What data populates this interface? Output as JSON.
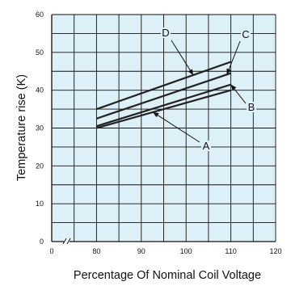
{
  "chart_data": {
    "type": "line",
    "title": "",
    "xlabel": "Percentage Of Nominal Coil Voltage",
    "ylabel": "Temperature rise (K)",
    "xlim": [
      70,
      120
    ],
    "ylim": [
      0,
      60
    ],
    "x_ticks": [
      {
        "value": 0,
        "label": "0"
      },
      {
        "value": 80,
        "label": "80"
      },
      {
        "value": 90,
        "label": "90"
      },
      {
        "value": 100,
        "label": "100"
      },
      {
        "value": 110,
        "label": "110"
      },
      {
        "value": 120,
        "label": "120"
      }
    ],
    "y_ticks": [
      0,
      10,
      20,
      30,
      40,
      50,
      60
    ],
    "x_axis_break": true,
    "grid": true,
    "colors": {
      "grid_fill": "#ddf0f8",
      "line": "#222222"
    },
    "series": [
      {
        "name": "A",
        "x": [
          80,
          110
        ],
        "y": [
          30,
          40
        ]
      },
      {
        "name": "B",
        "x": [
          80,
          110
        ],
        "y": [
          30.5,
          41.5
        ]
      },
      {
        "name": "C",
        "x": [
          80,
          110
        ],
        "y": [
          32.5,
          44.5
        ]
      },
      {
        "name": "D",
        "x": [
          80,
          110
        ],
        "y": [
          35,
          47.5
        ]
      }
    ],
    "annotations": [
      {
        "series": "A",
        "text": "A"
      },
      {
        "series": "B",
        "text": "B"
      },
      {
        "series": "C",
        "text": "C"
      },
      {
        "series": "D",
        "text": "D"
      }
    ]
  }
}
